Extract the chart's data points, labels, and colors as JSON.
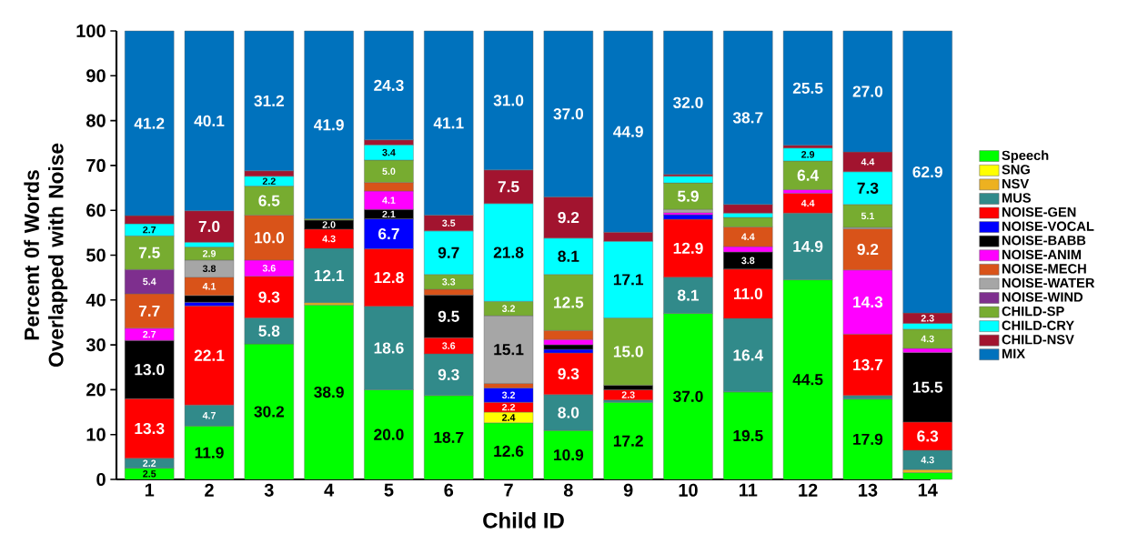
{
  "chart_data": {
    "type": "bar",
    "stacked": true,
    "xlabel": "Child ID",
    "ylabel": "Percent 0f Words Overlapped with Noise",
    "legend": "right",
    "ylim": [
      0,
      100
    ],
    "yticks": [
      0,
      10,
      20,
      30,
      40,
      50,
      60,
      70,
      80,
      90,
      100
    ],
    "categories": [
      "1",
      "2",
      "3",
      "4",
      "5",
      "6",
      "7",
      "8",
      "9",
      "10",
      "11",
      "12",
      "13",
      "14"
    ],
    "series": [
      {
        "name": "Speech",
        "color": "#00ff00",
        "values": [
          2.5,
          11.9,
          30.2,
          38.9,
          20.0,
          18.7,
          12.6,
          10.9,
          17.2,
          37.0,
          19.5,
          44.5,
          17.9,
          1.5
        ],
        "value_labels": [
          "2.5",
          "11.9",
          "30.2",
          "38.9",
          "20.0",
          "18.7",
          "12.6",
          "10.9",
          "17.2",
          "37.0",
          "19.5",
          "44.5",
          "17.9",
          null
        ]
      },
      {
        "name": "SNG",
        "color": "#ffff00",
        "values": [
          null,
          null,
          null,
          null,
          null,
          null,
          2.4,
          null,
          null,
          null,
          null,
          null,
          null,
          null
        ],
        "value_labels": [
          null,
          null,
          null,
          null,
          null,
          null,
          "2.4",
          null,
          null,
          null,
          null,
          null,
          null,
          null
        ]
      },
      {
        "name": "NSV",
        "color": "#edb120",
        "values": [
          null,
          null,
          null,
          0.5,
          null,
          null,
          null,
          null,
          null,
          null,
          null,
          null,
          null,
          0.7
        ],
        "value_labels": [
          null,
          null,
          null,
          null,
          null,
          null,
          null,
          null,
          null,
          null,
          null,
          null,
          null,
          null
        ]
      },
      {
        "name": "MUS",
        "color": "#318a8a",
        "values": [
          2.2,
          4.7,
          5.8,
          12.1,
          18.6,
          9.3,
          null,
          8.0,
          0.5,
          8.1,
          16.4,
          14.9,
          0.8,
          4.3
        ],
        "value_labels": [
          "2.2",
          "4.7",
          "5.8",
          "12.1",
          "18.6",
          "9.3",
          null,
          "8.0",
          null,
          "8.1",
          "16.4",
          "14.9",
          null,
          "4.3"
        ]
      },
      {
        "name": "NOISE-GEN",
        "color": "#ff0000",
        "values": [
          13.3,
          22.1,
          9.3,
          4.3,
          12.8,
          3.6,
          2.2,
          9.3,
          2.3,
          12.9,
          11.0,
          4.4,
          13.7,
          6.3
        ],
        "value_labels": [
          "13.3",
          "22.1",
          "9.3",
          "4.3",
          "12.8",
          "3.6",
          "2.2",
          "9.3",
          "2.3",
          "12.9",
          "11.0",
          "4.4",
          "13.7",
          "6.3"
        ]
      },
      {
        "name": "NOISE-VOCAL",
        "color": "#0000ff",
        "values": [
          null,
          0.8,
          null,
          null,
          6.7,
          null,
          3.2,
          0.8,
          null,
          1.0,
          null,
          null,
          null,
          null
        ],
        "value_labels": [
          null,
          null,
          null,
          null,
          "6.7",
          null,
          "3.2",
          null,
          null,
          null,
          null,
          null,
          null,
          null
        ]
      },
      {
        "name": "NOISE-BABB",
        "color": "#000000",
        "values": [
          13.0,
          1.5,
          null,
          2.0,
          2.1,
          9.5,
          null,
          1.0,
          1.0,
          null,
          3.8,
          null,
          null,
          15.5
        ],
        "value_labels": [
          "13.0",
          null,
          null,
          "2.0",
          "2.1",
          "9.5",
          null,
          null,
          null,
          null,
          "3.8",
          null,
          null,
          "15.5"
        ]
      },
      {
        "name": "NOISE-ANIM",
        "color": "#ff00ff",
        "values": [
          2.7,
          null,
          3.6,
          null,
          4.1,
          null,
          null,
          1.2,
          null,
          0.5,
          1.2,
          0.8,
          14.3,
          0.9
        ],
        "value_labels": [
          "2.7",
          null,
          "3.6",
          null,
          "4.1",
          null,
          null,
          null,
          null,
          null,
          null,
          null,
          "14.3",
          null
        ]
      },
      {
        "name": "NOISE-MECH",
        "color": "#d95319",
        "values": [
          7.7,
          4.1,
          10.0,
          null,
          1.9,
          1.3,
          1.0,
          2.0,
          null,
          null,
          4.4,
          null,
          9.2,
          null
        ],
        "value_labels": [
          "7.7",
          "4.1",
          "10.0",
          null,
          null,
          null,
          null,
          null,
          null,
          null,
          "4.4",
          null,
          "9.2",
          null
        ]
      },
      {
        "name": "NOISE-WATER",
        "color": "#a6a6a6",
        "values": [
          null,
          3.8,
          null,
          null,
          null,
          null,
          15.1,
          null,
          null,
          0.7,
          null,
          null,
          0.3,
          null
        ],
        "value_labels": [
          null,
          "3.8",
          null,
          null,
          null,
          null,
          "15.1",
          null,
          null,
          null,
          null,
          null,
          null,
          null
        ]
      },
      {
        "name": "NOISE-WIND",
        "color": "#7e2f8e",
        "values": [
          5.4,
          null,
          null,
          null,
          null,
          null,
          null,
          null,
          null,
          null,
          null,
          null,
          null,
          null
        ],
        "value_labels": [
          "5.4",
          null,
          null,
          null,
          null,
          null,
          null,
          null,
          null,
          null,
          null,
          null,
          null,
          null
        ]
      },
      {
        "name": "CHILD-SP",
        "color": "#77ac30",
        "values": [
          7.5,
          2.9,
          6.5,
          0.3,
          5.0,
          3.3,
          3.2,
          12.5,
          15.0,
          5.9,
          2.1,
          6.4,
          5.1,
          4.3
        ],
        "value_labels": [
          "7.5",
          "2.9",
          "6.5",
          null,
          "5.0",
          "3.3",
          "3.2",
          "12.5",
          "15.0",
          "5.9",
          null,
          "6.4",
          "5.1",
          "4.3"
        ]
      },
      {
        "name": "CHILD-CRY",
        "color": "#00ffff",
        "values": [
          2.7,
          1.1,
          2.2,
          null,
          3.4,
          9.7,
          21.8,
          8.1,
          17.1,
          1.5,
          1.0,
          2.9,
          7.3,
          1.3
        ],
        "value_labels": [
          "2.7",
          null,
          "2.2",
          null,
          "3.4",
          "9.7",
          "21.8",
          "8.1",
          "17.1",
          null,
          null,
          "2.9",
          "7.3",
          null
        ]
      },
      {
        "name": "CHILD-NSV",
        "color": "#a2142f",
        "values": [
          1.8,
          7.0,
          1.2,
          null,
          1.1,
          3.5,
          7.5,
          9.2,
          2.0,
          0.4,
          1.9,
          0.6,
          4.4,
          2.3
        ],
        "value_labels": [
          null,
          "7.0",
          null,
          null,
          null,
          "3.5",
          "7.5",
          "9.2",
          null,
          null,
          null,
          null,
          "4.4",
          "2.3"
        ]
      },
      {
        "name": "MIX",
        "color": "#0072bd",
        "values": [
          41.2,
          40.1,
          31.2,
          41.9,
          24.3,
          41.1,
          31.0,
          37.0,
          44.9,
          32.0,
          38.7,
          25.5,
          27.0,
          62.9
        ],
        "value_labels": [
          "41.2",
          "40.1",
          "31.2",
          "41.9",
          "24.3",
          "41.1",
          "31.0",
          "37.0",
          "44.9",
          "32.0",
          "38.7",
          "25.5",
          "27.0",
          "62.9"
        ]
      }
    ]
  }
}
